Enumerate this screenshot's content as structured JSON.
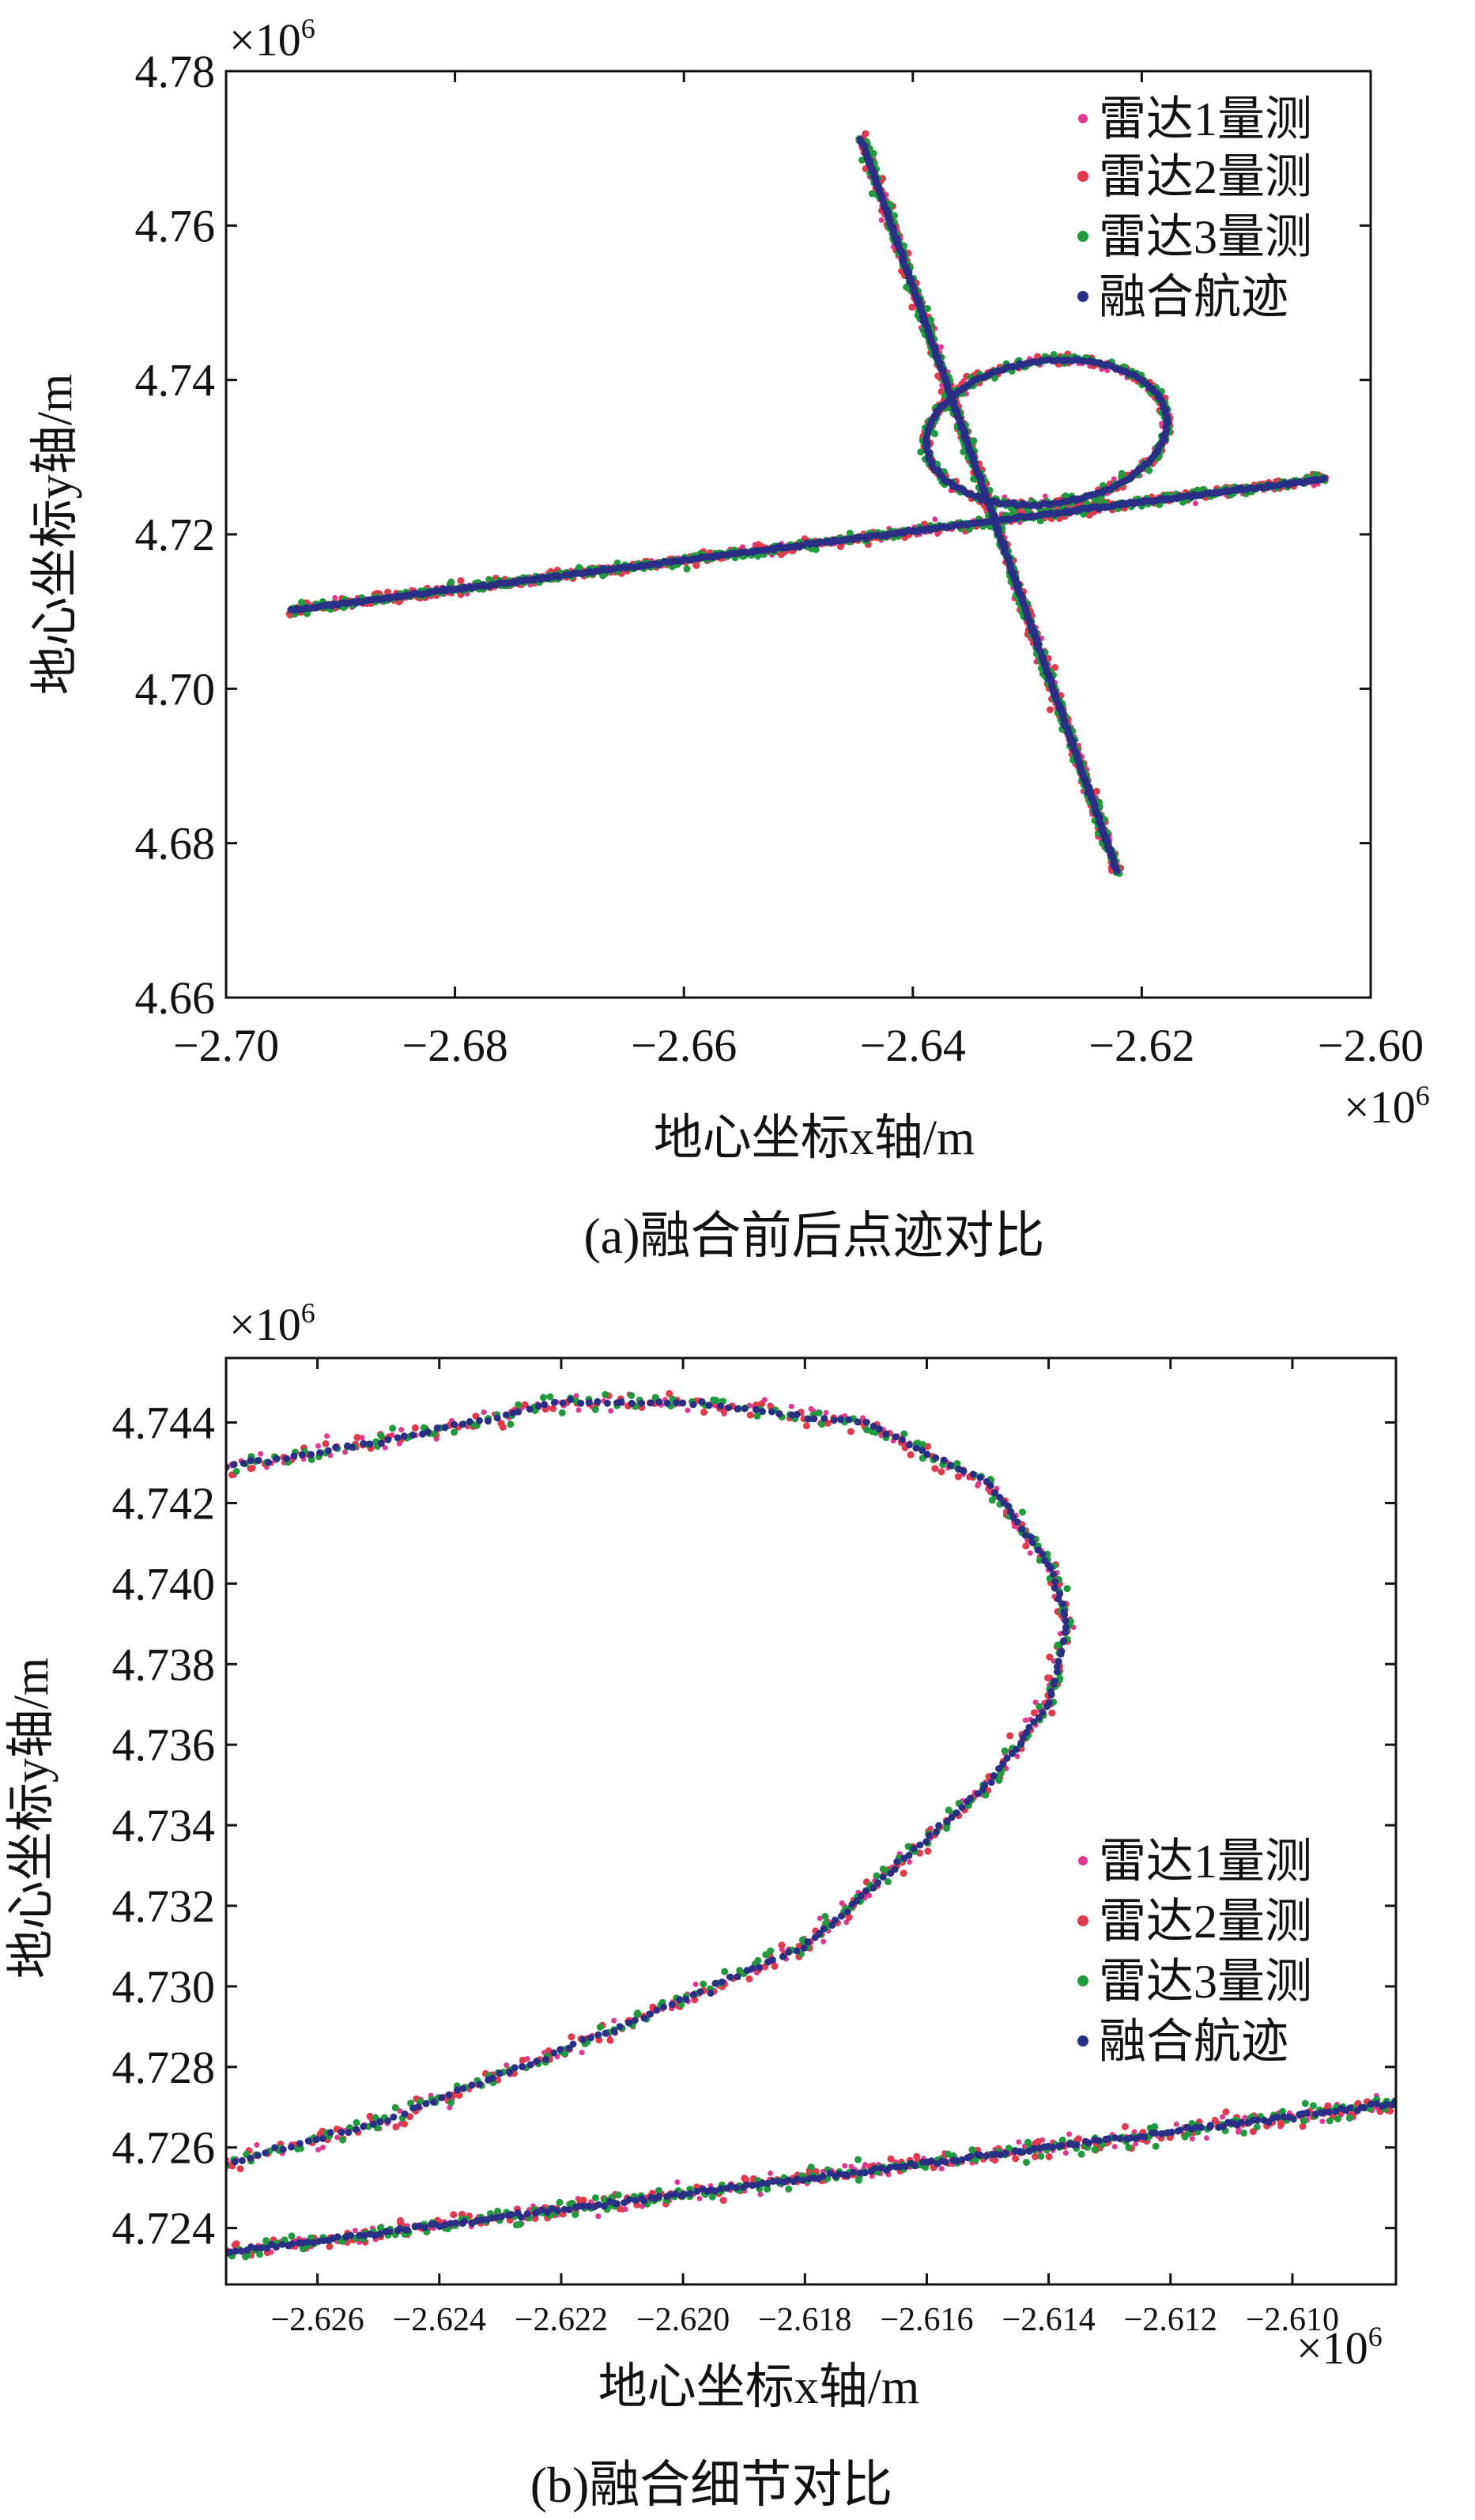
{
  "colors": {
    "radar1": "#e0388f",
    "radar2": "#e23a4d",
    "radar3": "#1f9a3c",
    "fused": "#2a2f86",
    "axis": "#111111"
  },
  "charts": [
    {
      "id": "a",
      "caption": "(a)融合前后点迹对比",
      "xlabel": "地心坐标x轴/m",
      "ylabel": "地心坐标y轴/m",
      "x_exponent": "×10",
      "x_exponent_sup": "6",
      "y_exponent": "×10",
      "y_exponent_sup": "6",
      "xlim": [
        -2.7,
        -2.6
      ],
      "ylim": [
        4.66,
        4.78
      ],
      "xticks": [
        -2.7,
        -2.68,
        -2.66,
        -2.64,
        -2.62,
        -2.6
      ],
      "xtick_labels": [
        "−2.70",
        "−2.68",
        "−2.66",
        "−2.64",
        "−2.62",
        "−2.60"
      ],
      "yticks": [
        4.66,
        4.68,
        4.7,
        4.72,
        4.74,
        4.76,
        4.78
      ],
      "ytick_labels": [
        "4.66",
        "4.68",
        "4.70",
        "4.72",
        "4.74",
        "4.76",
        "4.78"
      ],
      "legend": [
        "雷达1量测",
        "雷达2量测",
        "雷达3量测",
        "融合航迹"
      ],
      "legend_position": "top-right"
    },
    {
      "id": "b",
      "caption": "(b)融合细节对比",
      "xlabel": "地心坐标x轴/m",
      "ylabel": "地心坐标y轴/m",
      "x_exponent": "×10",
      "x_exponent_sup": "6",
      "y_exponent": "×10",
      "y_exponent_sup": "6",
      "xlim": [
        -2.6275,
        -2.6083
      ],
      "ylim": [
        4.7226,
        4.7456
      ],
      "xticks": [
        -2.626,
        -2.624,
        -2.622,
        -2.62,
        -2.618,
        -2.616,
        -2.614,
        -2.612,
        -2.61
      ],
      "xtick_labels": [
        "−2.626",
        "−2.624",
        "−2.622",
        "−2.620",
        "−2.618",
        "−2.616",
        "−2.614",
        "−2.612",
        "−2.610"
      ],
      "yticks": [
        4.724,
        4.726,
        4.728,
        4.73,
        4.732,
        4.734,
        4.736,
        4.738,
        4.74,
        4.742,
        4.744
      ],
      "ytick_labels": [
        "4.724",
        "4.726",
        "4.728",
        "4.730",
        "4.732",
        "4.734",
        "4.736",
        "4.738",
        "4.740",
        "4.742",
        "4.744"
      ],
      "legend": [
        "雷达1量测",
        "雷达2量测",
        "雷达3量测",
        "融合航迹"
      ],
      "legend_position": "right"
    }
  ],
  "chart_data": [
    {
      "type": "scatter",
      "title": "",
      "xlabel": "地心坐标x轴/m",
      "ylabel": "地心坐标y轴/m",
      "xlim": [
        -2.7,
        -2.6
      ],
      "ylim": [
        4.66,
        4.78
      ],
      "units_note": "×10^6",
      "series": [
        {
          "name": "雷达1量测"
        },
        {
          "name": "雷达2量测"
        },
        {
          "name": "雷达3量测"
        },
        {
          "name": "融合航迹"
        }
      ],
      "tracks": [
        {
          "desc": "line",
          "points": [
            [
              -2.6943,
              4.7102
            ],
            [
              -2.604,
              4.7272
            ]
          ]
        },
        {
          "desc": "line",
          "points": [
            [
              -2.6445,
              4.7712
            ],
            [
              -2.6222,
              4.6765
            ]
          ]
        },
        {
          "desc": "loop",
          "center": [
            -2.6285,
            4.7335
          ],
          "rx": 0.0105,
          "ry": 0.0095
        }
      ]
    },
    {
      "type": "scatter",
      "title": "",
      "xlabel": "地心坐标x轴/m",
      "ylabel": "地心坐标y轴/m",
      "xlim": [
        -2.6275,
        -2.6083
      ],
      "ylim": [
        4.7226,
        4.7456
      ],
      "units_note": "×10^6",
      "series": [
        {
          "name": "雷达1量测"
        },
        {
          "name": "雷达2量测"
        },
        {
          "name": "雷达3量测"
        },
        {
          "name": "融合航迹"
        }
      ],
      "tracks": [
        {
          "desc": "loop arc",
          "points": [
            [
              -2.6275,
              4.7429
            ],
            [
              -2.625,
              4.7435
            ],
            [
              -2.622,
              4.7445
            ],
            [
              -2.62,
              4.7445
            ],
            [
              -2.617,
              4.744
            ],
            [
              -2.615,
              4.7425
            ],
            [
              -2.614,
              4.7405
            ],
            [
              -2.6137,
              4.739
            ],
            [
              -2.614,
              4.737
            ],
            [
              -2.615,
              4.735
            ],
            [
              -2.618,
              4.731
            ],
            [
              -2.621,
              4.729
            ],
            [
              -2.625,
              4.7266
            ],
            [
              -2.6275,
              4.7256
            ]
          ]
        },
        {
          "desc": "line",
          "points": [
            [
              -2.6275,
              4.7234
            ],
            [
              -2.6083,
              4.7271
            ]
          ]
        }
      ]
    }
  ]
}
